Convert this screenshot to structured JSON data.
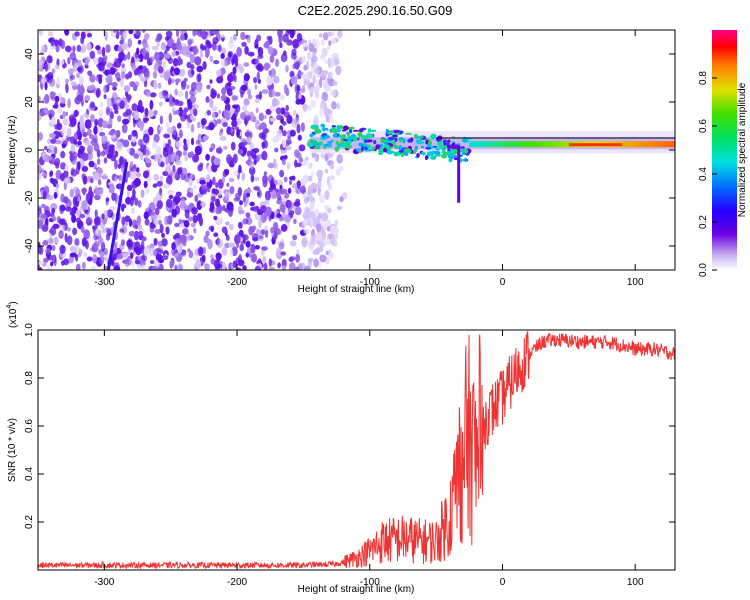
{
  "figure": {
    "title": "C2E2.2025.290.16.50.G09"
  },
  "chart_data": [
    {
      "type": "heatmap",
      "name": "spectrogram",
      "xlabel": "Height of straight line (km)",
      "ylabel": "Frequency (Hz)",
      "xlim": [
        -350,
        130
      ],
      "ylim": [
        -50,
        50
      ],
      "xticks": [
        -300,
        -200,
        -100,
        0,
        100
      ],
      "yticks": [
        -40,
        -20,
        0,
        20,
        40
      ],
      "colorbar": {
        "label": "Normalized spectral amplitude",
        "range": [
          0,
          1
        ],
        "ticks": [
          "0.0",
          "0.2",
          "0.4",
          "0.6",
          "0.8"
        ],
        "tick_values": [
          0.0,
          0.2,
          0.4,
          0.6,
          0.8
        ]
      },
      "features": {
        "noise_region_x": [
          -350,
          -125
        ],
        "tone_start_x": -145,
        "tone_end_x": 130,
        "tone_freq_hz": 2,
        "diagonal_trace": {
          "x": [
            -297,
            -283
          ],
          "freq_hz": [
            -50,
            -5
          ]
        },
        "downward_spike": {
          "x": -33,
          "freq_hz": -22
        }
      }
    },
    {
      "type": "line",
      "name": "snr",
      "xlabel": "Height of straight line (km)",
      "ylabel": "SNR (10 * v/v)",
      "scale_label": "(x10",
      "scale_exp": "4",
      "scale_close": ")",
      "xlim": [
        -350,
        130
      ],
      "ylim": [
        0,
        1.0
      ],
      "xticks": [
        -300,
        -200,
        -100,
        0,
        100
      ],
      "yticks": [
        "0.2",
        "0.4",
        "0.6",
        "0.8",
        "1.0"
      ],
      "ytick_values": [
        0.2,
        0.4,
        0.6,
        0.8,
        1.0
      ],
      "color": "#ee3333",
      "series": [
        {
          "name": "SNR",
          "x": [
            -350,
            -150,
            -125,
            -110,
            -100,
            -90,
            -75,
            -60,
            -50,
            -40,
            -35,
            -30,
            -25,
            -20,
            -15,
            -10,
            0,
            10,
            20,
            30,
            40,
            60,
            80,
            95,
            100,
            115,
            130
          ],
          "y": [
            0.02,
            0.02,
            0.025,
            0.05,
            0.08,
            0.12,
            0.13,
            0.12,
            0.12,
            0.22,
            0.35,
            0.5,
            0.55,
            0.45,
            0.6,
            0.65,
            0.72,
            0.82,
            0.9,
            0.95,
            0.96,
            0.95,
            0.95,
            0.93,
            0.92,
            0.92,
            0.9
          ]
        }
      ]
    }
  ]
}
